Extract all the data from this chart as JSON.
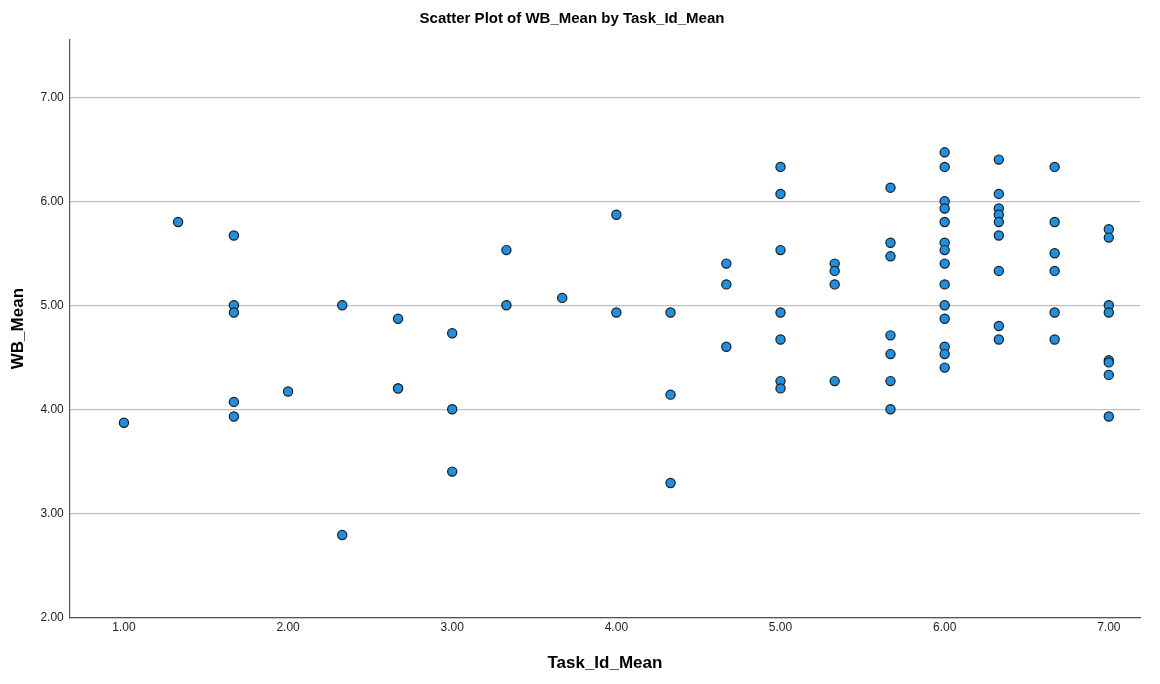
{
  "chart_data": {
    "type": "scatter",
    "title": "Scatter Plot of WB_Mean by Task_Id_Mean",
    "xlabel": "Task_Id_Mean",
    "ylabel": "WB_Mean",
    "xlim": [
      0.67,
      7.19
    ],
    "ylim": [
      2,
      7.55
    ],
    "xticks": [
      {
        "value": 1,
        "label": "1.00"
      },
      {
        "value": 2,
        "label": "2.00"
      },
      {
        "value": 3,
        "label": "3.00"
      },
      {
        "value": 4,
        "label": "4.00"
      },
      {
        "value": 5,
        "label": "5.00"
      },
      {
        "value": 6,
        "label": "6.00"
      },
      {
        "value": 7,
        "label": "7.00"
      }
    ],
    "yticks": [
      {
        "value": 2,
        "label": "2.00"
      },
      {
        "value": 3,
        "label": "3.00"
      },
      {
        "value": 4,
        "label": "4.00"
      },
      {
        "value": 5,
        "label": "5.00"
      },
      {
        "value": 6,
        "label": "6.00"
      },
      {
        "value": 7,
        "label": "7.00"
      }
    ],
    "grid": "y",
    "marker": "circle",
    "legend": false,
    "series": [
      {
        "color": "#1e8fe1",
        "x": [
          1,
          1.33,
          1.67,
          1.67,
          1.67,
          1.67,
          1.67,
          2,
          2.33,
          2.33,
          2.67,
          2.67,
          2.67,
          3,
          3,
          3,
          3.33,
          3.33,
          3.67,
          4,
          4,
          4.33,
          4.33,
          4.33,
          4.67,
          4.67,
          4.67,
          5,
          5,
          5,
          5,
          5,
          5,
          5,
          5.33,
          5.33,
          5.33,
          5.33,
          5.67,
          5.67,
          5.67,
          5.67,
          5.67,
          5.67,
          5.67,
          6,
          6,
          6,
          6,
          6,
          6,
          6,
          6,
          6,
          6,
          6,
          6,
          6,
          6,
          6.33,
          6.33,
          6.33,
          6.33,
          6.33,
          6.33,
          6.33,
          6.33,
          6.33,
          6.67,
          6.67,
          6.67,
          6.67,
          6.67,
          6.67,
          7,
          7,
          7,
          7,
          7,
          7,
          7,
          7
        ],
        "values": [
          3.87,
          5.8,
          5.67,
          5,
          4.93,
          4.07,
          3.93,
          4.17,
          5,
          2.79,
          4.87,
          4.2,
          4.2,
          4.73,
          4,
          3.4,
          5.53,
          5,
          5.07,
          5.87,
          4.93,
          4.93,
          4.14,
          3.29,
          5.4,
          5.2,
          4.6,
          6.33,
          6.07,
          5.53,
          4.93,
          4.67,
          4.27,
          4.2,
          5.4,
          5.33,
          5.2,
          4.27,
          6.13,
          5.6,
          5.47,
          4.71,
          4.53,
          4.27,
          4,
          6.47,
          6.33,
          6,
          5.93,
          5.8,
          5.6,
          5.53,
          5.4,
          5.2,
          5,
          4.87,
          4.6,
          4.53,
          4.4,
          6.4,
          6.07,
          5.93,
          5.87,
          5.8,
          5.67,
          5.33,
          4.8,
          4.67,
          6.33,
          5.8,
          5.5,
          5.33,
          4.93,
          4.67,
          5.73,
          5.65,
          5,
          4.93,
          4.47,
          4.45,
          4.33,
          3.93
        ]
      }
    ]
  }
}
